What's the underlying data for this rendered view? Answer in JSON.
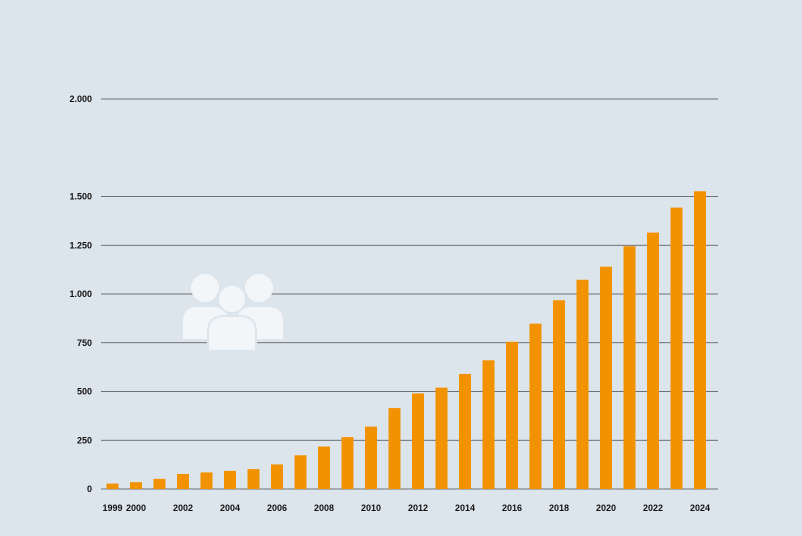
{
  "chart_data": {
    "type": "bar",
    "categories": [
      "1999",
      "2000",
      "2001",
      "2002",
      "2003",
      "2004",
      "2005",
      "2006",
      "2007",
      "2008",
      "2009",
      "2010",
      "2011",
      "2012",
      "2013",
      "2014",
      "2015",
      "2016",
      "2017",
      "2018",
      "2019",
      "2020",
      "2021",
      "2022",
      "2023",
      "2024"
    ],
    "values": [
      28,
      35,
      52,
      77,
      85,
      93,
      102,
      126,
      173,
      218,
      266,
      320,
      415,
      490,
      520,
      590,
      660,
      755,
      848,
      968,
      1073,
      1140,
      1245,
      1315,
      1443,
      1527
    ],
    "x_tick_labels": [
      "1999",
      "2000",
      "2002",
      "2004",
      "2006",
      "2008",
      "2010",
      "2012",
      "2014",
      "2016",
      "2018",
      "2020",
      "2022",
      "2024"
    ],
    "y_ticks": [
      0,
      250,
      500,
      750,
      1000,
      1250,
      1500,
      2000
    ],
    "y_tick_labels": [
      "0",
      "250",
      "500",
      "750",
      "1.000",
      "1.250",
      "1.500",
      "2.000"
    ],
    "ylim": [
      0,
      2000
    ],
    "title": "",
    "xlabel": "",
    "ylabel": "",
    "grid": true,
    "legend": "none",
    "bar_color": "#f39200",
    "background_color": "#dde5ec",
    "decoration_icon": "people-group-icon"
  }
}
